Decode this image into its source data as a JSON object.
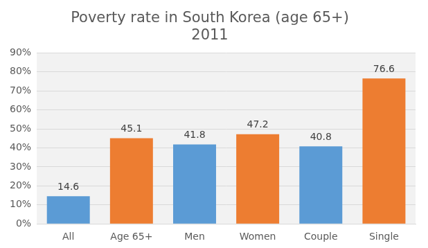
{
  "chart_data": {
    "type": "bar",
    "title": [
      "Poverty rate in South Korea (age 65+)",
      "2011"
    ],
    "categories": [
      "All",
      "Age 65+",
      "Men",
      "Women",
      "Couple",
      "Single"
    ],
    "values": [
      14.6,
      45.1,
      41.8,
      47.2,
      40.8,
      76.6
    ],
    "colors": [
      "#5b9bd5",
      "#ed7d31",
      "#5b9bd5",
      "#ed7d31",
      "#5b9bd5",
      "#ed7d31"
    ],
    "ylim": [
      0,
      90
    ],
    "yticks": [
      {
        "value": 0,
        "label": "0%"
      },
      {
        "value": 10,
        "label": "10%"
      },
      {
        "value": 20,
        "label": "20%"
      },
      {
        "value": 30,
        "label": "30%"
      },
      {
        "value": 40,
        "label": "40%"
      },
      {
        "value": 50,
        "label": "50%"
      },
      {
        "value": 60,
        "label": "60%"
      },
      {
        "value": 70,
        "label": "70%"
      },
      {
        "value": 80,
        "label": "80%"
      },
      {
        "value": 90,
        "label": "90%"
      }
    ],
    "grid": true,
    "data_labels": true
  }
}
